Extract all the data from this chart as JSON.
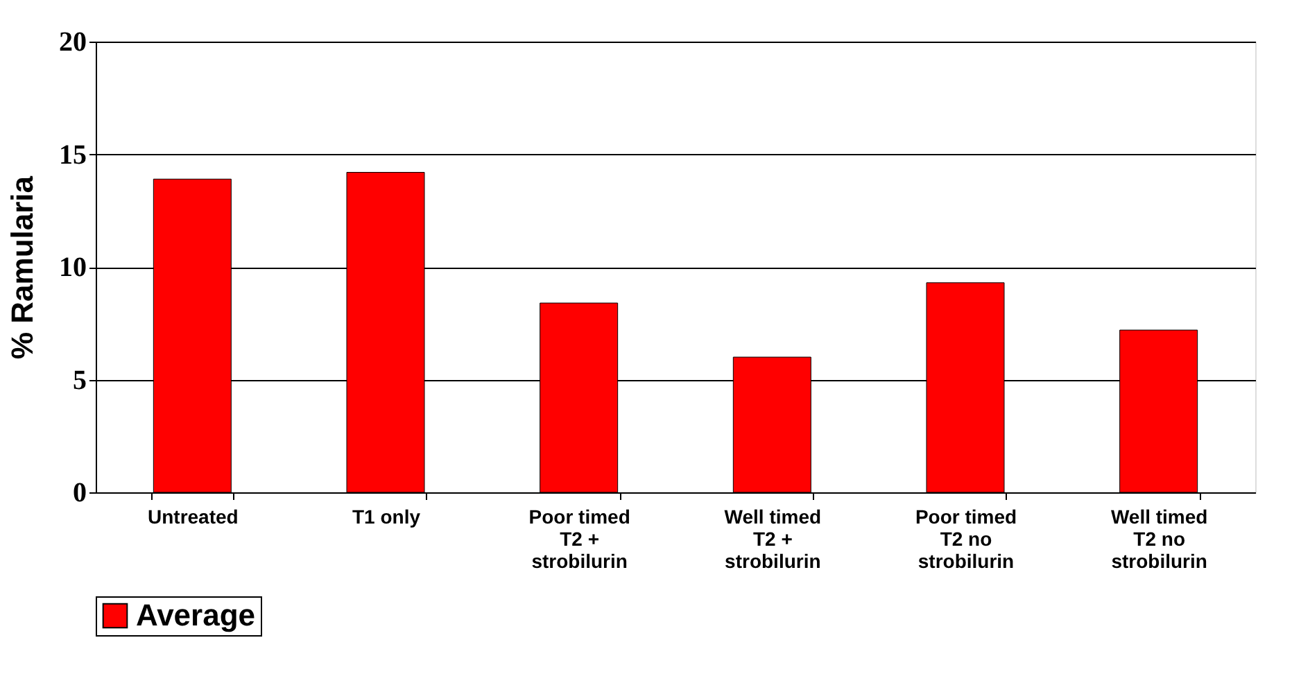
{
  "chart_data": {
    "type": "bar",
    "ylabel": "% Ramularia",
    "categories": [
      "Untreated",
      "T1 only",
      "Poor timed T2 + strobilurin",
      "Well timed T2 + strobilurin",
      "Poor timed T2 no strobilurin",
      "Well timed T2 no strobilurin"
    ],
    "series": [
      {
        "name": "Average",
        "color": "#ff0000",
        "values": [
          13.9,
          14.2,
          8.4,
          6.0,
          9.3,
          7.2
        ]
      }
    ],
    "ylim": [
      0,
      20
    ],
    "yticks": [
      0,
      5,
      10,
      15,
      20
    ],
    "grid": "y",
    "legend": "bottom"
  }
}
